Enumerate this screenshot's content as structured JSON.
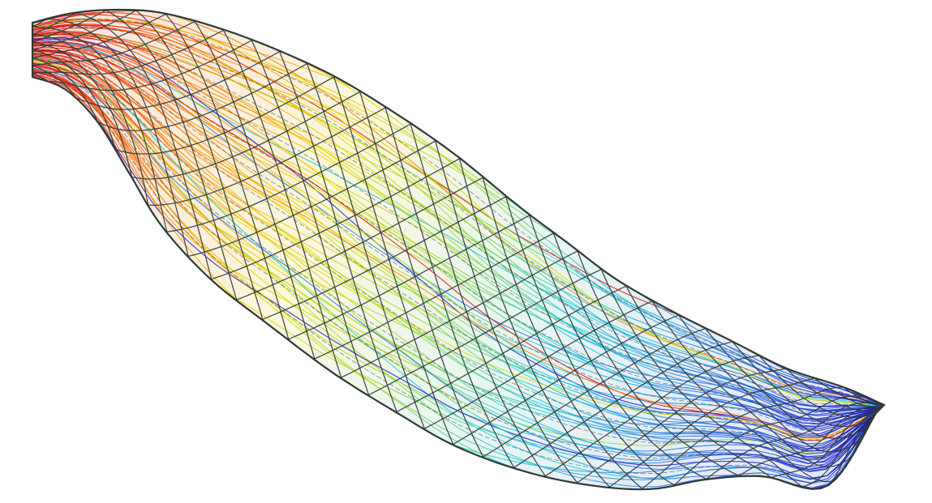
{
  "figure": {
    "subject": "streamline-mesh-render",
    "background": "#ffffff",
    "mesh_color": "#2d3a36",
    "gradient_colors": [
      "#e01010",
      "#ff7a00",
      "#e8d800",
      "#9ad832",
      "#20c8d8",
      "#2a7ae0",
      "#1a1ad0"
    ]
  }
}
